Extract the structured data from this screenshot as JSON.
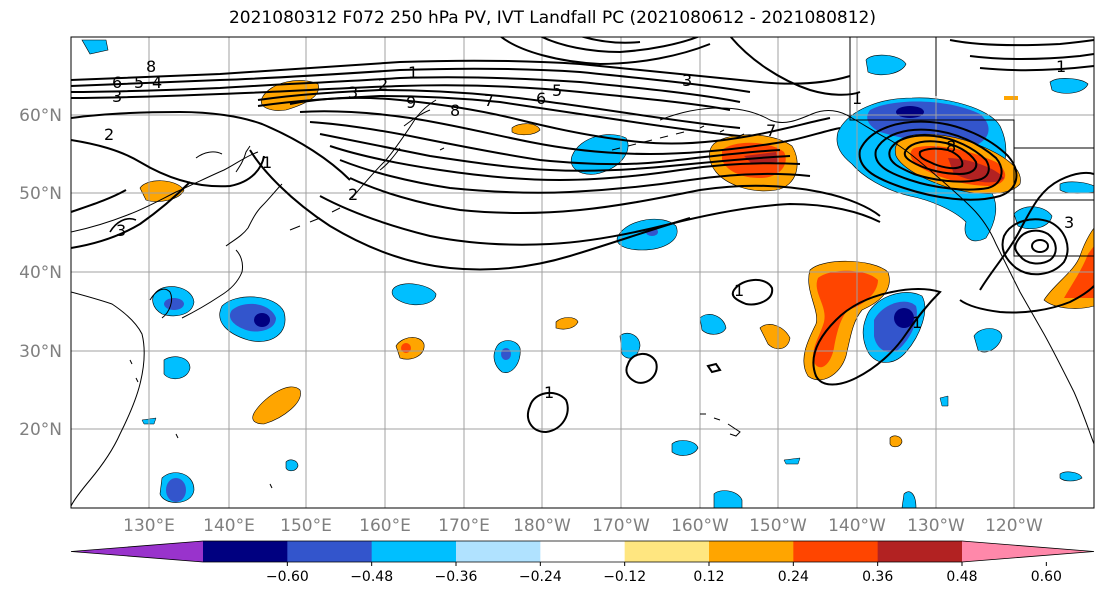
{
  "title": "2021080312 F072 250 hPa PV, IVT Landfall PC (2021080612 - 2021080812)",
  "map": {
    "lat_ticks": [
      "20°N",
      "30°N",
      "40°N",
      "50°N",
      "60°N"
    ],
    "lon_ticks": [
      "130°E",
      "140°E",
      "150°E",
      "160°E",
      "170°E",
      "180°W",
      "170°W",
      "160°W",
      "150°W",
      "140°W",
      "130°W",
      "120°W"
    ]
  },
  "colorbar": {
    "tick_labels": [
      "−0.60",
      "−0.48",
      "−0.36",
      "−0.24",
      "−0.12",
      "0.12",
      "0.24",
      "0.36",
      "0.48",
      "0.60"
    ],
    "colors": [
      "#9933cc",
      "#000080",
      "#3355cc",
      "#00bfff",
      "#b0e2ff",
      "#ffffff",
      "#ffe680",
      "#ffa500",
      "#ff4500",
      "#b22222",
      "#ff88aa"
    ]
  },
  "contour_labels": [
    "8",
    "6",
    "5",
    "4",
    "3",
    "2",
    "1",
    "2",
    "3",
    "9",
    "8",
    "7",
    "6",
    "5",
    "3",
    "2",
    "1",
    "1",
    "1",
    "1",
    "3",
    "3",
    "7",
    "8",
    "1",
    "1"
  ]
}
